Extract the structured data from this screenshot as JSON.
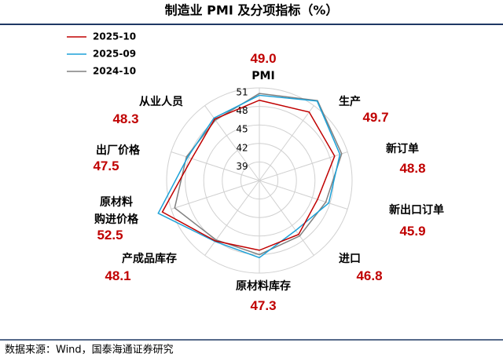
{
  "chart_data": {
    "type": "radar",
    "title": "制造业 PMI 及分项指标（%）",
    "source": "数据来源：Wind，国泰海通证券研究",
    "categories": [
      "PMI",
      "生产",
      "新订单",
      "新出口订单",
      "进口",
      "原材料库存",
      "产成品库存",
      "原材料\n购进价格",
      "出厂价格",
      "从业人员"
    ],
    "rlim": [
      36,
      51
    ],
    "rticks": [
      39,
      42,
      45,
      48,
      51
    ],
    "series": [
      {
        "name": "2025-10",
        "color": "#c00000",
        "values": [
          49,
          49.7,
          48.8,
          45.9,
          46.8,
          47.3,
          48.1,
          52.5,
          47.5,
          48.3
        ],
        "value_labels": [
          "49.0",
          "49.7",
          "48.8",
          "45.9",
          "46.8",
          "47.3",
          "48.1",
          "52.5",
          "47.5",
          "48.3"
        ]
      },
      {
        "name": "2025-09",
        "color": "#1ba1d8",
        "values": [
          49.8,
          51.9,
          49.7,
          47.8,
          46.0,
          48.5,
          48.2,
          53.2,
          48.2,
          48.5
        ]
      },
      {
        "name": "2024-10",
        "color": "#808080",
        "values": [
          50.1,
          52.0,
          50.0,
          47.3,
          47.1,
          48.0,
          47.9,
          50.4,
          48.4,
          48.1
        ]
      }
    ]
  }
}
